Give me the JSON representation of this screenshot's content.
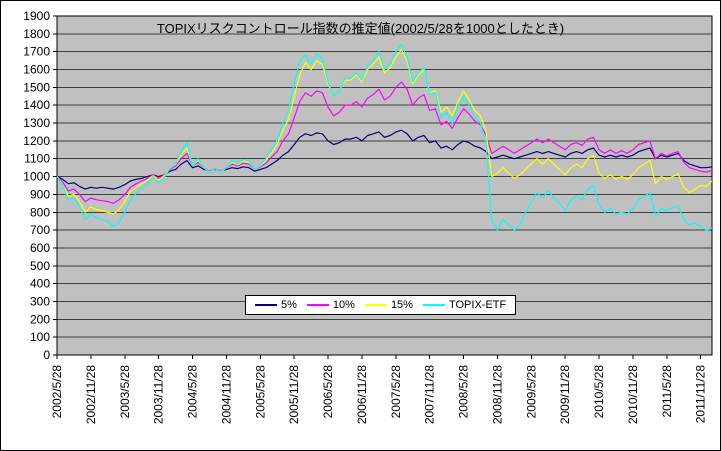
{
  "chart_data": {
    "type": "line",
    "title": "TOPIXリスクコントロール指数の推定値(2002/5/28を1000としたとき)",
    "xlabel": "",
    "ylabel": "",
    "ylim": [
      0,
      1900
    ],
    "y_tick_step": 100,
    "grid": true,
    "plot_area_bg": "#C0C0C0",
    "gridline_color": "#404040",
    "legend_position": "bottom-center-inside",
    "x_start": "2002/5/28",
    "x_interval": "monthly",
    "x_ticks_every_n_points": 6,
    "x_tick_labels": [
      "2002/5/28",
      "2002/11/28",
      "2003/5/28",
      "2003/11/28",
      "2004/5/28",
      "2004/11/28",
      "2005/5/28",
      "2005/11/28",
      "2006/5/28",
      "2006/11/28",
      "2007/5/28",
      "2007/11/28",
      "2008/5/28",
      "2008/11/28",
      "2009/5/28",
      "2009/11/28",
      "2010/5/28",
      "2010/11/28",
      "2011/5/28",
      "2011/11/28"
    ],
    "series": [
      {
        "name": "5%",
        "color": "#000080",
        "values": [
          1000,
          985,
          960,
          965,
          945,
          930,
          940,
          935,
          940,
          935,
          930,
          940,
          955,
          975,
          985,
          990,
          1000,
          1010,
          1000,
          1010,
          1030,
          1040,
          1070,
          1090,
          1050,
          1060,
          1040,
          1030,
          1040,
          1030,
          1040,
          1050,
          1045,
          1055,
          1050,
          1030,
          1040,
          1050,
          1070,
          1090,
          1120,
          1140,
          1180,
          1220,
          1240,
          1230,
          1245,
          1240,
          1200,
          1180,
          1190,
          1210,
          1210,
          1220,
          1200,
          1230,
          1240,
          1250,
          1220,
          1230,
          1250,
          1260,
          1240,
          1200,
          1220,
          1230,
          1190,
          1200,
          1160,
          1170,
          1150,
          1180,
          1200,
          1190,
          1170,
          1160,
          1140,
          1100,
          1110,
          1120,
          1110,
          1100,
          1110,
          1120,
          1130,
          1140,
          1130,
          1140,
          1130,
          1120,
          1110,
          1130,
          1140,
          1130,
          1150,
          1160,
          1120,
          1110,
          1120,
          1110,
          1120,
          1110,
          1120,
          1140,
          1150,
          1160,
          1100,
          1120,
          1110,
          1120,
          1130,
          1090,
          1070,
          1060,
          1050,
          1050,
          1055
        ]
      },
      {
        "name": "10%",
        "color": "#FF00FF",
        "values": [
          1000,
          970,
          920,
          930,
          900,
          860,
          880,
          870,
          865,
          860,
          850,
          870,
          900,
          940,
          960,
          975,
          990,
          1010,
          990,
          1010,
          1040,
          1060,
          1100,
          1130,
          1060,
          1080,
          1050,
          1030,
          1045,
          1030,
          1050,
          1070,
          1060,
          1075,
          1070,
          1040,
          1055,
          1075,
          1110,
          1140,
          1200,
          1240,
          1330,
          1420,
          1470,
          1450,
          1480,
          1470,
          1390,
          1340,
          1360,
          1400,
          1400,
          1420,
          1390,
          1440,
          1460,
          1490,
          1430,
          1450,
          1500,
          1530,
          1490,
          1400,
          1440,
          1460,
          1370,
          1380,
          1290,
          1310,
          1270,
          1330,
          1380,
          1350,
          1310,
          1290,
          1230,
          1130,
          1150,
          1170,
          1150,
          1130,
          1150,
          1170,
          1190,
          1210,
          1190,
          1210,
          1190,
          1170,
          1150,
          1180,
          1190,
          1175,
          1210,
          1220,
          1150,
          1130,
          1150,
          1130,
          1145,
          1130,
          1150,
          1180,
          1190,
          1200,
          1100,
          1130,
          1115,
          1130,
          1140,
          1080,
          1050,
          1040,
          1030,
          1025,
          1035
        ]
      },
      {
        "name": "15%",
        "color": "#FFFF00",
        "values": [
          1000,
          955,
          890,
          900,
          860,
          800,
          830,
          815,
          810,
          800,
          790,
          815,
          860,
          915,
          940,
          960,
          980,
          1005,
          980,
          1005,
          1045,
          1070,
          1120,
          1160,
          1060,
          1090,
          1050,
          1025,
          1045,
          1025,
          1050,
          1080,
          1065,
          1085,
          1080,
          1040,
          1060,
          1090,
          1135,
          1180,
          1260,
          1320,
          1450,
          1570,
          1640,
          1600,
          1650,
          1630,
          1520,
          1450,
          1480,
          1540,
          1540,
          1570,
          1530,
          1600,
          1630,
          1670,
          1580,
          1610,
          1670,
          1710,
          1650,
          1520,
          1570,
          1600,
          1470,
          1480,
          1360,
          1390,
          1340,
          1420,
          1480,
          1430,
          1370,
          1340,
          1250,
          1000,
          1020,
          1050,
          1020,
          990,
          1010,
          1040,
          1070,
          1100,
          1070,
          1100,
          1070,
          1040,
          1010,
          1050,
          1070,
          1050,
          1100,
          1120,
          1020,
          990,
          1010,
          985,
          1000,
          985,
          1010,
          1050,
          1070,
          1090,
          960,
          1000,
          985,
          1000,
          1015,
          940,
          910,
          930,
          950,
          945,
          975
        ]
      },
      {
        "name": "TOPIX-ETF",
        "color": "#00FFFF",
        "values": [
          1000,
          950,
          870,
          880,
          830,
          760,
          790,
          770,
          760,
          750,
          720,
          745,
          800,
          870,
          905,
          935,
          960,
          995,
          965,
          995,
          1045,
          1075,
          1140,
          1190,
          1060,
          1100,
          1050,
          1020,
          1045,
          1020,
          1050,
          1090,
          1070,
          1095,
          1090,
          1040,
          1065,
          1100,
          1150,
          1205,
          1300,
          1370,
          1520,
          1650,
          1680,
          1630,
          1690,
          1660,
          1530,
          1450,
          1480,
          1550,
          1550,
          1580,
          1540,
          1620,
          1650,
          1700,
          1600,
          1630,
          1700,
          1740,
          1670,
          1530,
          1580,
          1610,
          1460,
          1470,
          1330,
          1360,
          1300,
          1390,
          1450,
          1400,
          1330,
          1300,
          1180,
          750,
          700,
          760,
          730,
          700,
          730,
          800,
          860,
          910,
          880,
          920,
          880,
          850,
          810,
          870,
          890,
          870,
          930,
          950,
          840,
          800,
          820,
          790,
          800,
          790,
          820,
          870,
          890,
          910,
          780,
          820,
          810,
          825,
          835,
          760,
          730,
          740,
          720,
          700,
          710
        ]
      }
    ]
  }
}
